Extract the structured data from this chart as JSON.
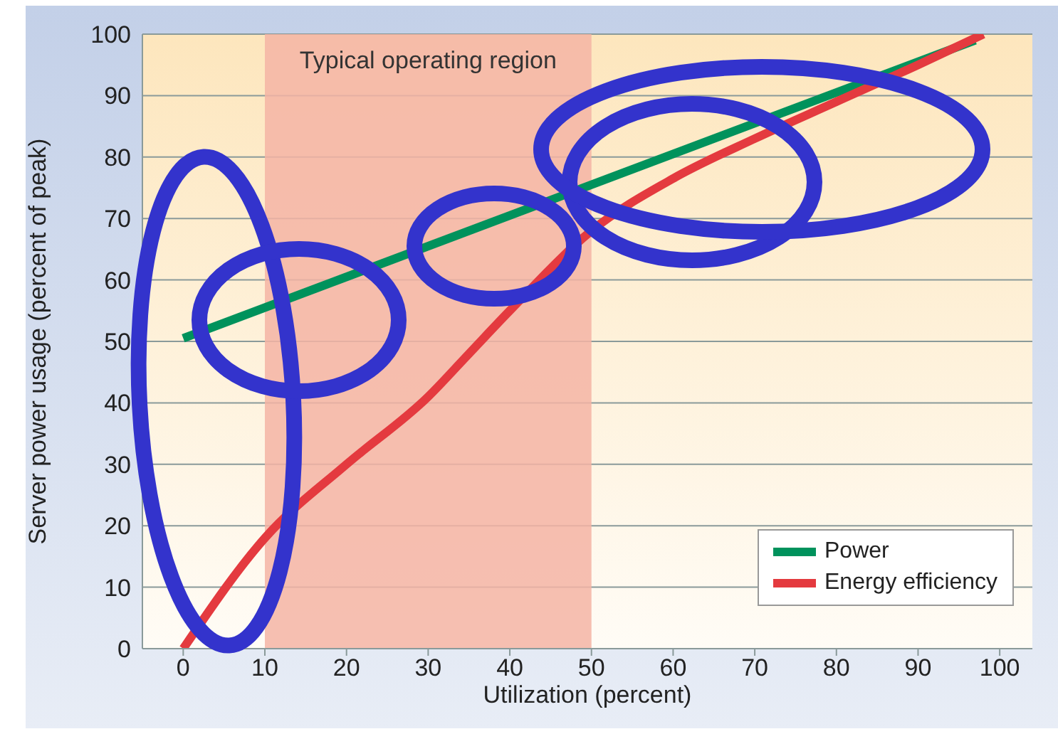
{
  "chart_data": {
    "type": "line",
    "xlabel": "Utilization (percent)",
    "ylabel": "Server power usage (percent of peak)",
    "xlim": [
      -5,
      104
    ],
    "xticks": [
      0,
      10,
      20,
      30,
      40,
      50,
      60,
      70,
      80,
      90,
      100
    ],
    "ylim": [
      0,
      100
    ],
    "yticks": [
      0,
      10,
      20,
      30,
      40,
      50,
      60,
      70,
      80,
      90,
      100
    ],
    "grid": "y",
    "legend": "bottom right",
    "marker": "none",
    "line_style": "solid",
    "bands": [
      {
        "axis": "x",
        "from": 10,
        "to": 50,
        "label": "Typical operating region",
        "color": "#f4b4a4"
      }
    ],
    "series": [
      {
        "name": "Power",
        "color": "#00925c",
        "x": [
          0,
          97
        ],
        "values": [
          50.5,
          99
        ]
      },
      {
        "name": "Energy efficiency",
        "color": "#e43a3f",
        "x": [
          0,
          10,
          20,
          30,
          35,
          40,
          50,
          60,
          70,
          80,
          90,
          98
        ],
        "values": [
          0,
          18,
          30,
          41,
          48,
          55,
          68,
          76.5,
          83,
          89,
          95,
          100
        ]
      }
    ]
  }
}
